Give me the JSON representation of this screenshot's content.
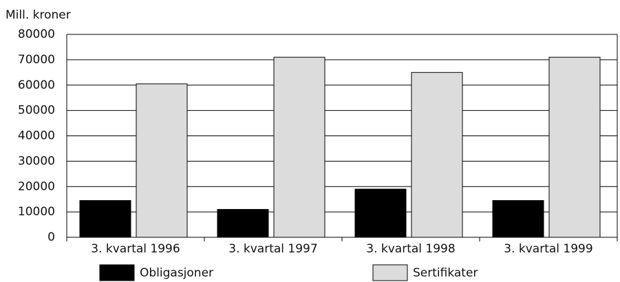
{
  "chart_data": {
    "type": "bar",
    "y_label": "Mill. kroner",
    "categories": [
      "3. kvartal 1996",
      "3. kvartal 1997",
      "3. kvartal 1998",
      "3. kvartal 1999"
    ],
    "series": [
      {
        "name": "Obligasjoner",
        "color": "#000000",
        "values": [
          14500,
          11000,
          19000,
          14500
        ]
      },
      {
        "name": "Sertifikater",
        "color": "#dcdcdc",
        "values": [
          60500,
          71000,
          65000,
          71000
        ]
      }
    ],
    "ylim": [
      0,
      80000
    ],
    "yticks": [
      0,
      10000,
      20000,
      30000,
      40000,
      50000,
      60000,
      70000,
      80000
    ],
    "grid": true,
    "legend": "bottom"
  }
}
